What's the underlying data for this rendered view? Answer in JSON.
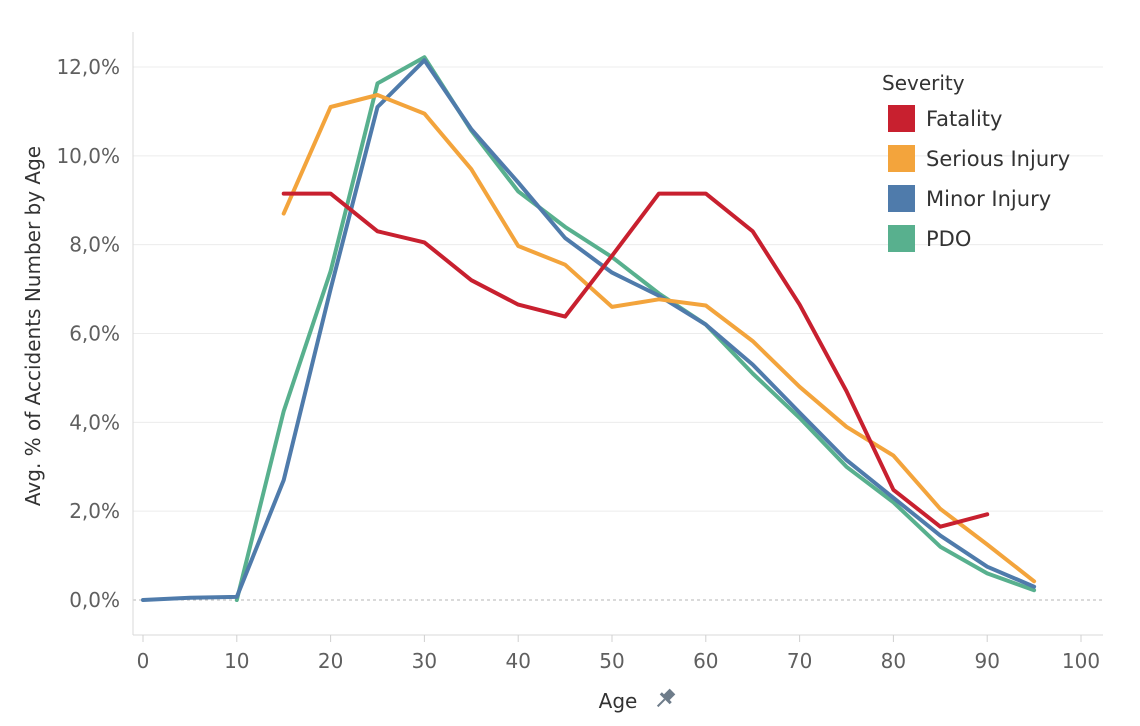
{
  "chart_data": {
    "type": "line",
    "xlabel": "Age",
    "ylabel": "Avg. % of Accidents Number by Age",
    "xlim": [
      0,
      100
    ],
    "ylim": [
      0,
      12.5
    ],
    "x_ticks": [
      0,
      10,
      20,
      30,
      40,
      50,
      60,
      70,
      80,
      90,
      100
    ],
    "y_ticks": [
      0,
      2,
      4,
      6,
      8,
      10,
      12
    ],
    "y_tick_labels": [
      "0,0%",
      "2,0%",
      "4,0%",
      "6,0%",
      "8,0%",
      "10,0%",
      "12,0%"
    ],
    "grid": true,
    "legend": {
      "title": "Severity",
      "placement": "top-right"
    },
    "series": [
      {
        "name": "Fatality",
        "color": "#c8202f",
        "x": [
          15,
          20,
          25,
          30,
          35,
          40,
          45,
          50,
          55,
          60,
          65,
          70,
          75,
          80,
          85,
          90
        ],
        "y": [
          9.15,
          9.15,
          8.3,
          8.05,
          7.2,
          6.65,
          6.38,
          7.75,
          9.15,
          9.15,
          8.3,
          6.65,
          4.7,
          2.48,
          1.65,
          1.93
        ]
      },
      {
        "name": "Serious Injury",
        "color": "#f3a43c",
        "x": [
          15,
          20,
          25,
          30,
          35,
          40,
          45,
          50,
          55,
          60,
          65,
          70,
          75,
          80,
          85,
          90,
          95
        ],
        "y": [
          8.7,
          11.1,
          11.37,
          10.95,
          9.7,
          7.97,
          7.55,
          6.6,
          6.77,
          6.63,
          5.83,
          4.8,
          3.9,
          3.25,
          2.05,
          1.25,
          0.42
        ]
      },
      {
        "name": "Minor Injury",
        "color": "#4f7bab",
        "x": [
          0,
          5,
          10,
          15,
          20,
          25,
          30,
          35,
          40,
          45,
          50,
          55,
          60,
          65,
          70,
          75,
          80,
          85,
          90,
          95
        ],
        "y": [
          0.0,
          0.05,
          0.07,
          2.7,
          7.0,
          11.1,
          12.15,
          10.6,
          9.4,
          8.15,
          7.37,
          6.85,
          6.2,
          5.3,
          4.22,
          3.15,
          2.3,
          1.45,
          0.75,
          0.3
        ]
      },
      {
        "name": "PDO",
        "color": "#58b08e",
        "x": [
          10,
          15,
          20,
          25,
          30,
          35,
          40,
          45,
          50,
          55,
          60,
          65,
          70,
          75,
          80,
          85,
          90,
          95
        ],
        "y": [
          0.0,
          4.25,
          7.4,
          11.63,
          12.22,
          10.57,
          9.2,
          8.4,
          7.72,
          6.9,
          6.2,
          5.1,
          4.1,
          3.0,
          2.2,
          1.2,
          0.6,
          0.22
        ]
      }
    ]
  }
}
